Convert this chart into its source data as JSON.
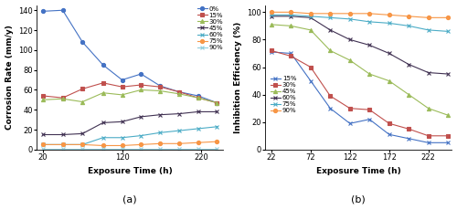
{
  "plot_a": {
    "title": "(a)",
    "xlabel": "Exposure Time (h)",
    "ylabel": "Corrosion Rate (mm/y)",
    "xlim": [
      12,
      248
    ],
    "ylim": [
      0,
      145
    ],
    "xticks": [
      20,
      120,
      220
    ],
    "yticks": [
      0,
      20,
      40,
      60,
      80,
      100,
      120,
      140
    ],
    "series": [
      {
        "label": "0%",
        "color": "#4472C4",
        "marker": "o",
        "x": [
          20,
          45,
          70,
          96,
          120,
          144,
          168,
          192,
          216,
          240
        ],
        "y": [
          139,
          140,
          108,
          85,
          70,
          76,
          64,
          58,
          54,
          47
        ]
      },
      {
        "label": "15%",
        "color": "#C0504D",
        "marker": "s",
        "x": [
          20,
          45,
          70,
          96,
          120,
          144,
          168,
          192,
          216,
          240
        ],
        "y": [
          54,
          52,
          61,
          67,
          63,
          65,
          63,
          58,
          52,
          47
        ]
      },
      {
        "label": "30%",
        "color": "#9BBB59",
        "marker": "^",
        "x": [
          20,
          45,
          70,
          96,
          120,
          144,
          168,
          192,
          216,
          240
        ],
        "y": [
          50,
          51,
          48,
          57,
          55,
          60,
          59,
          56,
          52,
          47
        ]
      },
      {
        "label": "45%",
        "color": "#403152",
        "marker": "x",
        "x": [
          20,
          45,
          70,
          96,
          120,
          144,
          168,
          192,
          216,
          240
        ],
        "y": [
          15,
          15,
          16,
          27,
          28,
          33,
          35,
          36,
          38,
          38
        ]
      },
      {
        "label": "60%",
        "color": "#4BACC6",
        "marker": "x",
        "x": [
          20,
          45,
          70,
          96,
          120,
          144,
          168,
          192,
          216,
          240
        ],
        "y": [
          5,
          5,
          5,
          12,
          12,
          14,
          17,
          19,
          21,
          23
        ]
      },
      {
        "label": "75%",
        "color": "#F79646",
        "marker": "o",
        "x": [
          20,
          45,
          70,
          96,
          120,
          144,
          168,
          192,
          216,
          240
        ],
        "y": [
          5,
          5,
          5,
          4,
          4,
          5,
          6,
          6,
          7,
          8
        ]
      },
      {
        "label": "90%",
        "color": "#92CDDC",
        "marker": "x",
        "x": [
          20,
          45,
          70,
          96,
          120,
          144,
          168,
          192,
          216,
          240
        ],
        "y": [
          1,
          1,
          1,
          1,
          1,
          1,
          1,
          1,
          1,
          1
        ]
      }
    ]
  },
  "plot_b": {
    "title": "(b)",
    "xlabel": "Exposure Time (h)",
    "ylabel": "Inhibition Efficiency (%)",
    "xlim": [
      14,
      252
    ],
    "ylim": [
      0,
      105
    ],
    "xticks": [
      22,
      72,
      122,
      172,
      222
    ],
    "yticks": [
      0,
      20,
      40,
      60,
      80,
      100
    ],
    "series": [
      {
        "label": "15%",
        "color": "#4472C4",
        "marker": "x",
        "x": [
          22,
          47,
          72,
          97,
          122,
          147,
          172,
          197,
          222,
          247
        ],
        "y": [
          71,
          70,
          50,
          30,
          19,
          22,
          11,
          8,
          5,
          5
        ]
      },
      {
        "label": "30%",
        "color": "#C0504D",
        "marker": "s",
        "x": [
          22,
          47,
          72,
          97,
          122,
          147,
          172,
          197,
          222,
          247
        ],
        "y": [
          72,
          68,
          60,
          39,
          30,
          29,
          19,
          15,
          10,
          10
        ]
      },
      {
        "label": "45%",
        "color": "#9BBB59",
        "marker": "^",
        "x": [
          22,
          47,
          72,
          97,
          122,
          147,
          172,
          197,
          222,
          247
        ],
        "y": [
          91,
          90,
          87,
          72,
          65,
          55,
          50,
          40,
          30,
          25
        ]
      },
      {
        "label": "60%",
        "color": "#403152",
        "marker": "x",
        "x": [
          22,
          47,
          72,
          97,
          122,
          147,
          172,
          197,
          222,
          247
        ],
        "y": [
          97,
          97,
          96,
          87,
          80,
          76,
          70,
          62,
          56,
          55
        ]
      },
      {
        "label": "75%",
        "color": "#4BACC6",
        "marker": "x",
        "x": [
          22,
          47,
          72,
          97,
          122,
          147,
          172,
          197,
          222,
          247
        ],
        "y": [
          98,
          98,
          97,
          96,
          95,
          93,
          92,
          90,
          87,
          86
        ]
      },
      {
        "label": "90%",
        "color": "#F79646",
        "marker": "o",
        "x": [
          22,
          47,
          72,
          97,
          122,
          147,
          172,
          197,
          222,
          247
        ],
        "y": [
          100,
          100,
          99,
          99,
          99,
          99,
          98,
          97,
          96,
          96
        ]
      }
    ]
  }
}
